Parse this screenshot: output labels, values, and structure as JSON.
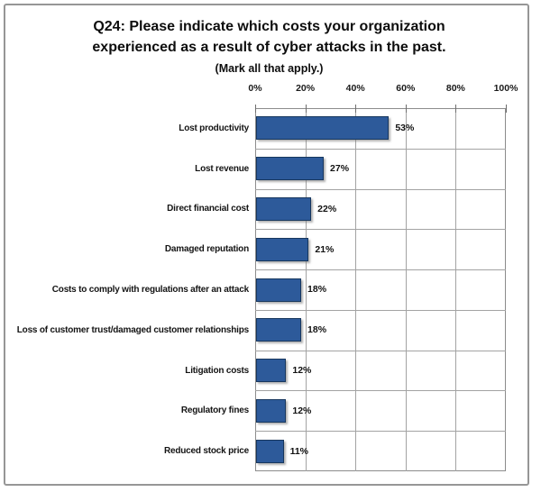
{
  "chart_data": {
    "type": "bar",
    "orientation": "horizontal",
    "title": "Q24: Please indicate which costs your organization experienced as a result of cyber attacks in the past.",
    "title_line1": "Q24: Please indicate which costs your organization",
    "title_line2": "experienced as a result of cyber attacks in the past.",
    "subtitle": "(Mark all that apply.)",
    "categories": [
      "Lost productivity",
      "Lost revenue",
      "Direct financial cost",
      "Damaged reputation",
      "Costs to comply with regulations after an attack",
      "Loss of customer trust/damaged customer relationships",
      "Litigation costs",
      "Regulatory fines",
      "Reduced stock price"
    ],
    "values": [
      53,
      27,
      22,
      21,
      18,
      18,
      12,
      12,
      11
    ],
    "value_labels": [
      "53%",
      "27%",
      "22%",
      "21%",
      "18%",
      "18%",
      "12%",
      "12%",
      "11%"
    ],
    "x_ticks": [
      "0%",
      "20%",
      "40%",
      "60%",
      "80%",
      "100%"
    ],
    "xlim": [
      0,
      100
    ],
    "xlabel": "",
    "ylabel": "",
    "grid": true,
    "legend": "none",
    "data_labels": true,
    "colors": {
      "bar_fill": "#2d5a9a",
      "bar_border": "#17375e",
      "gridline": "#a3a3a3",
      "plot_border": "#8c8c8c",
      "frame_border": "#969696",
      "text": "#111111",
      "background": "#ffffff"
    }
  }
}
